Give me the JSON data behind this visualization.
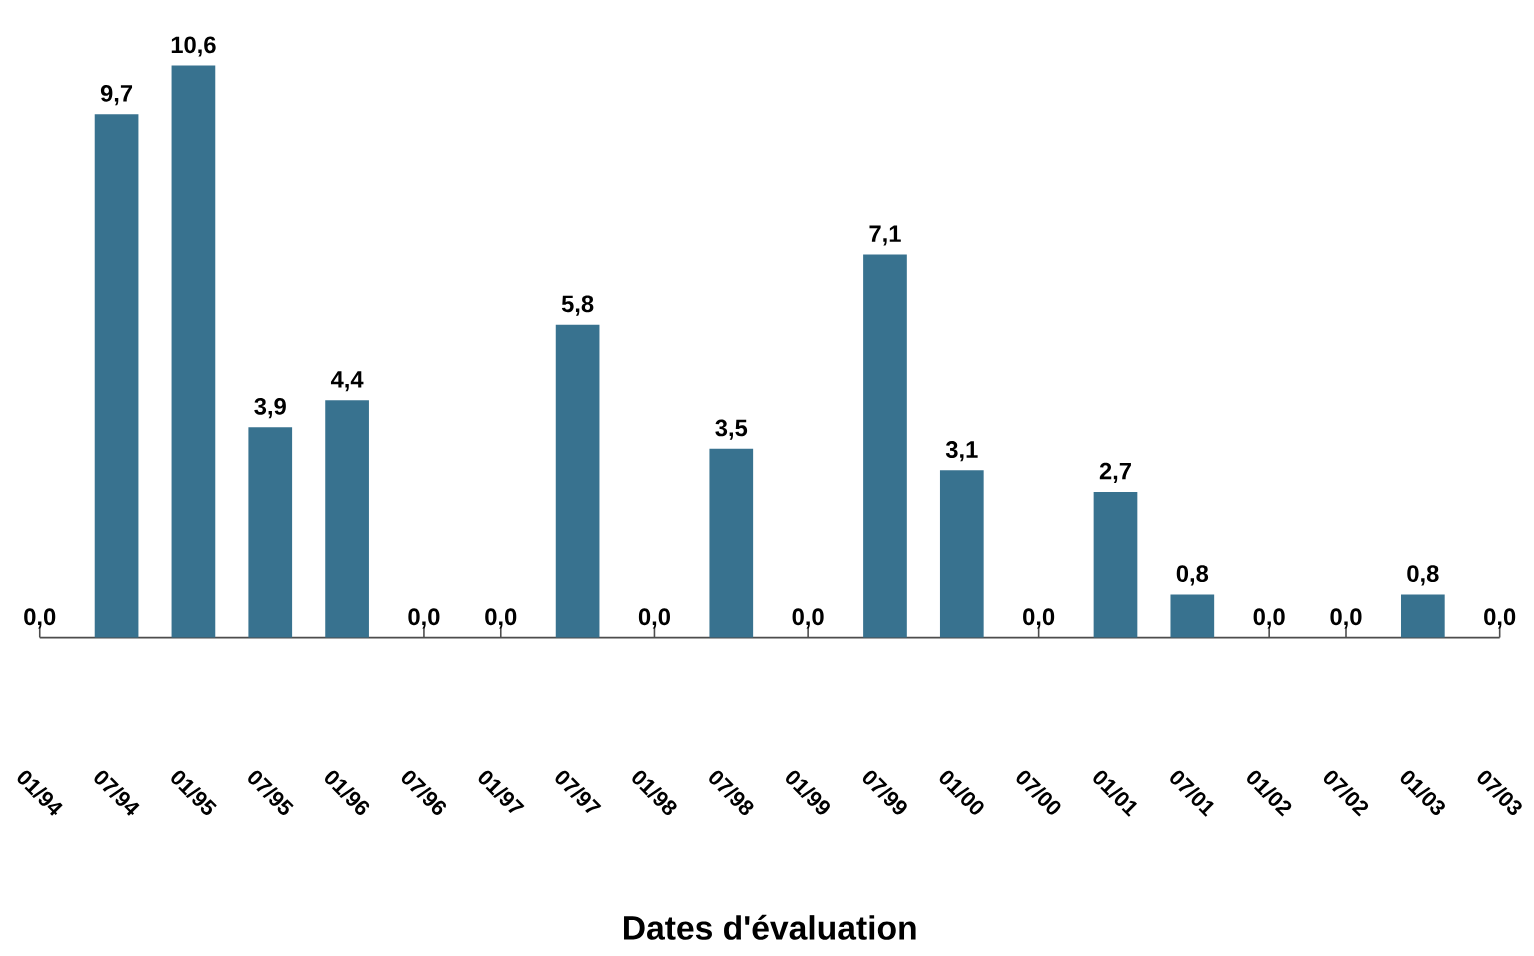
{
  "chart_data": {
    "type": "bar",
    "xlabel": "Dates d'évaluation",
    "categories": [
      "01/94",
      "07/94",
      "01/95",
      "07/95",
      "01/96",
      "07/96",
      "01/97",
      "07/97",
      "01/98",
      "07/98",
      "01/99",
      "07/99",
      "01/00",
      "07/00",
      "01/01",
      "07/01",
      "01/02",
      "07/02",
      "01/03",
      "07/03"
    ],
    "values": [
      0,
      9.7,
      10.6,
      3.9,
      4.4,
      0,
      0,
      5.8,
      0,
      3.5,
      0,
      7.1,
      3.1,
      0,
      2.7,
      0.8,
      0,
      0,
      0.8,
      0
    ],
    "value_labels": [
      "0,0",
      "9,7",
      "10,6",
      "3,9",
      "4,4",
      "0,0",
      "0,0",
      "5,8",
      "0,0",
      "3,5",
      "0,0",
      "7,1",
      "3,1",
      "0,0",
      "2,7",
      "0,8",
      "0,0",
      "0,0",
      "0,8",
      "0,0"
    ],
    "color": "#38728f"
  }
}
